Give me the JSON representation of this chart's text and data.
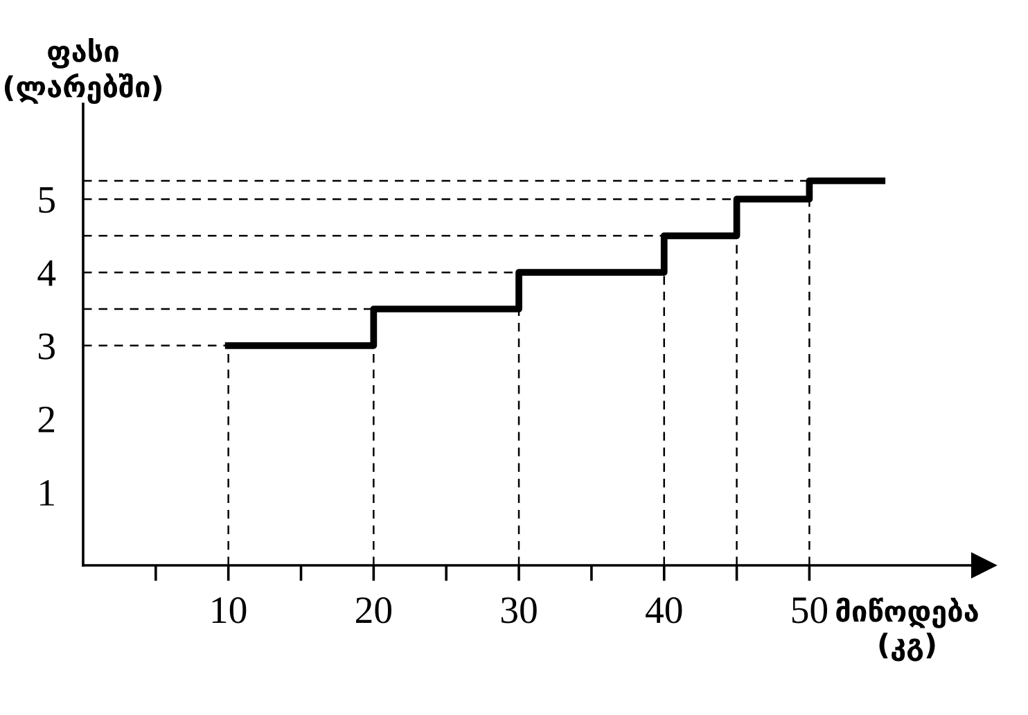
{
  "chart_data": {
    "type": "step",
    "xlabel": "მიწოდება\n(კგ)",
    "ylabel": "ფასი\n(ლარებში)",
    "x": [
      10,
      20,
      30,
      40,
      45,
      50,
      55
    ],
    "series": [
      {
        "color": "#000000",
        "values": [
          3,
          3.5,
          4,
          4.5,
          5,
          5.25,
          5.25
        ]
      }
    ],
    "xlim": [
      0,
      62
    ],
    "ylim": [
      0,
      6.3
    ],
    "xticks": [
      {
        "value": 5,
        "label": null
      },
      10,
      {
        "value": 15,
        "label": null
      },
      20,
      {
        "value": 25,
        "label": null
      },
      30,
      {
        "value": 35,
        "label": null
      },
      40,
      {
        "value": 45,
        "label": null
      },
      50
    ],
    "yticks": [
      1,
      2,
      3,
      4,
      5
    ],
    "ref_lines": [
      {
        "axis": "y",
        "value": 3,
        "line_style": "dashed"
      },
      {
        "axis": "y",
        "value": 3.5,
        "line_style": "dashed"
      },
      {
        "axis": "y",
        "value": 4,
        "line_style": "dashed"
      },
      {
        "axis": "y",
        "value": 4.5,
        "line_style": "dashed"
      },
      {
        "axis": "y",
        "value": 5,
        "line_style": "dashed"
      },
      {
        "axis": "y",
        "value": 5.25,
        "line_style": "dashed"
      },
      {
        "axis": "x",
        "value": 10,
        "line_style": "dashed"
      },
      {
        "axis": "x",
        "value": 20,
        "line_style": "dashed"
      },
      {
        "axis": "x",
        "value": 30,
        "line_style": "dashed"
      },
      {
        "axis": "x",
        "value": 40,
        "line_style": "dashed"
      },
      {
        "axis": "x",
        "value": 45,
        "line_style": "dashed"
      },
      {
        "axis": "x",
        "value": 50,
        "line_style": "dashed"
      }
    ],
    "grid": false,
    "legend": false
  }
}
